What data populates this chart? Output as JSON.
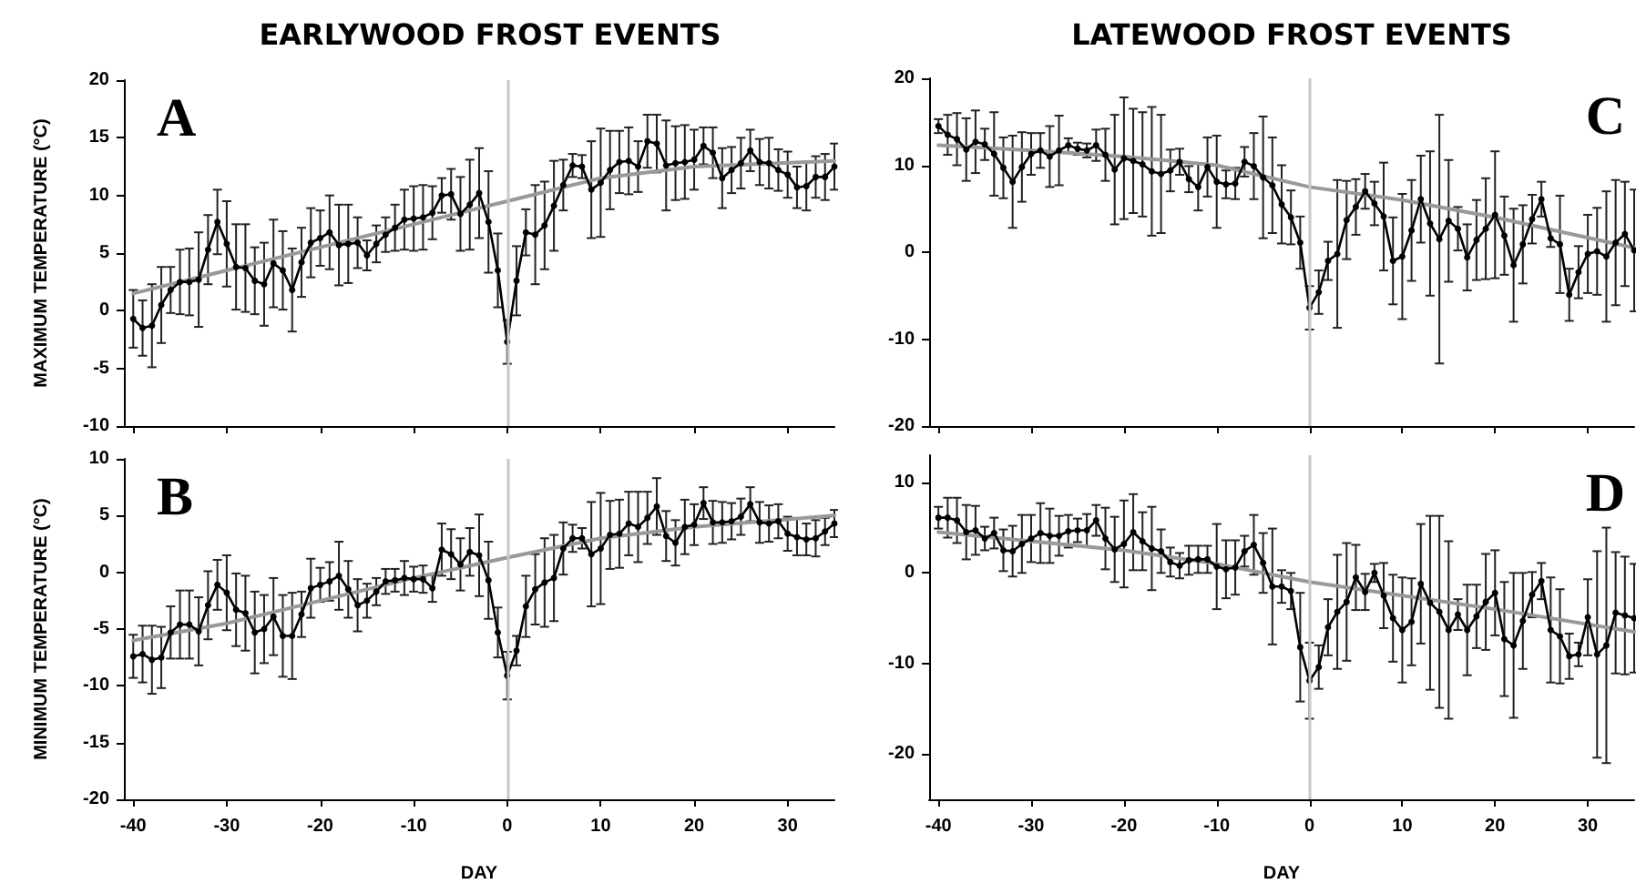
{
  "chart_data": [
    {
      "type": "line",
      "title": "EARLYWOOD FROST EVENTS",
      "ylabel": "MAXIMUM TEMPERATURE (°C)",
      "annotations": [
        "A"
      ],
      "xlim": [
        -41,
        35
      ],
      "xticks": [
        -40,
        -30,
        -20,
        -10,
        0,
        10,
        20,
        30
      ],
      "ylim": [
        -10,
        20
      ],
      "yticks": [
        -10,
        -5,
        0,
        5,
        10,
        15,
        20
      ],
      "tick_labels": "y",
      "marker": "circle",
      "ref_lines": [
        {
          "axis": "x",
          "value": 0,
          "color": "#c8c8c8"
        }
      ],
      "series": [
        {
          "color": "#999999",
          "marker": "none",
          "x": [
            -40,
            -30,
            -20,
            -10,
            0,
            10,
            20,
            35
          ],
          "values": [
            1.5,
            3.5,
            5.5,
            7.5,
            9.5,
            11.5,
            12.5,
            13
          ]
        },
        {
          "color": "#000000",
          "x": [
            -40,
            -39,
            -38,
            -37,
            -36,
            -35,
            -34,
            -33,
            -32,
            -31,
            -30,
            -29,
            -28,
            -27,
            -26,
            -25,
            -24,
            -23,
            -22,
            -21,
            -20,
            -19,
            -18,
            -17,
            -16,
            -15,
            -14,
            -13,
            -12,
            -11,
            -10,
            -9,
            -8,
            -7,
            -6,
            -5,
            -4,
            -3,
            -2,
            -1,
            0,
            1,
            2,
            3,
            4,
            5,
            6,
            7,
            8,
            9,
            10,
            11,
            12,
            13,
            14,
            15,
            16,
            17,
            18,
            19,
            20,
            21,
            22,
            23,
            24,
            25,
            26,
            27,
            28,
            29,
            30,
            31,
            32,
            33,
            34,
            35
          ],
          "values": [
            -0.7,
            -1.5,
            -1.3,
            0.5,
            1.8,
            2.5,
            2.5,
            2.7,
            5.3,
            7.7,
            5.8,
            3.8,
            3.7,
            2.6,
            2.3,
            4.1,
            3.5,
            1.8,
            4.2,
            5.9,
            6.3,
            6.8,
            5.7,
            5.8,
            5.9,
            4.8,
            5.8,
            6.6,
            7.2,
            7.9,
            8,
            8.1,
            8.5,
            10,
            10.1,
            8.4,
            9.2,
            10.2,
            7.7,
            3.5,
            -2.7,
            2.6,
            6.8,
            6.6,
            7.4,
            9.1,
            10.9,
            12.6,
            12.5,
            10.5,
            11.1,
            12.2,
            12.9,
            13,
            12.5,
            14.7,
            14.5,
            12.6,
            12.8,
            12.9,
            13.1,
            14.3,
            13.7,
            11.5,
            12.2,
            12.8,
            13.9,
            12.9,
            12.8,
            12.2,
            11.8,
            10.7,
            10.8,
            11.6,
            11.6,
            12.5
          ],
          "errors": [
            2.5,
            2.4,
            3.6,
            3.3,
            2,
            2.8,
            2.9,
            4.1,
            3,
            2.8,
            3.7,
            3.7,
            3.8,
            2.9,
            3.6,
            3.8,
            3.4,
            3.6,
            3,
            3,
            2.4,
            3.2,
            3.5,
            3.4,
            2.2,
            1.3,
            1.6,
            1.5,
            2,
            2.6,
            2.8,
            2.8,
            2.3,
            1.5,
            2.2,
            3.2,
            3.9,
            3.9,
            4.4,
            3.2,
            1.9,
            3,
            2,
            4.3,
            3.8,
            3.9,
            2.2,
            1,
            1,
            4.2,
            4.7,
            3.4,
            2.7,
            2.9,
            2.2,
            2.3,
            2.5,
            3.9,
            3.2,
            3.2,
            2.6,
            1.6,
            2.2,
            2.6,
            2,
            2.2,
            1.8,
            2,
            2.2,
            1.8,
            2,
            1.8,
            2.1,
            1.8,
            2,
            2
          ]
        }
      ]
    },
    {
      "type": "line",
      "ylabel": "MINIMUM TEMPERATURE (°C)",
      "xlabel": "DAY",
      "annotations": [
        "B"
      ],
      "xlim": [
        -41,
        35
      ],
      "xticks": [
        -40,
        -30,
        -20,
        -10,
        0,
        10,
        20,
        30
      ],
      "ylim": [
        -20,
        10
      ],
      "yticks": [
        -20,
        -15,
        -10,
        -5,
        0,
        5,
        10
      ],
      "marker": "circle",
      "ref_lines": [
        {
          "axis": "x",
          "value": 0,
          "color": "#c8c8c8"
        }
      ],
      "series": [
        {
          "color": "#999999",
          "marker": "none",
          "x": [
            -40,
            -30,
            -20,
            -10,
            0,
            10,
            20,
            35
          ],
          "values": [
            -6,
            -4.5,
            -2.5,
            -0.5,
            1.3,
            3,
            4,
            5
          ]
        },
        {
          "color": "#000000",
          "x": [
            -40,
            -39,
            -38,
            -37,
            -36,
            -35,
            -34,
            -33,
            -32,
            -31,
            -30,
            -29,
            -28,
            -27,
            -26,
            -25,
            -24,
            -23,
            -22,
            -21,
            -20,
            -19,
            -18,
            -17,
            -16,
            -15,
            -14,
            -13,
            -12,
            -11,
            -10,
            -9,
            -8,
            -7,
            -6,
            -5,
            -4,
            -3,
            -2,
            -1,
            0,
            1,
            2,
            3,
            4,
            5,
            6,
            7,
            8,
            9,
            10,
            11,
            12,
            13,
            14,
            15,
            16,
            17,
            18,
            19,
            20,
            21,
            22,
            23,
            24,
            25,
            26,
            27,
            28,
            29,
            30,
            31,
            32,
            33,
            34,
            35
          ],
          "values": [
            -7.4,
            -7.2,
            -7.7,
            -7.5,
            -5.3,
            -4.6,
            -4.6,
            -5.2,
            -2.9,
            -1.1,
            -1.8,
            -3.3,
            -3.6,
            -5.3,
            -5,
            -3.9,
            -5.6,
            -5.6,
            -3.7,
            -1.4,
            -1.1,
            -0.8,
            -0.3,
            -1.5,
            -2.9,
            -2.5,
            -1.7,
            -0.8,
            -0.7,
            -0.5,
            -0.6,
            -0.6,
            -1.4,
            2,
            1.6,
            0.7,
            1.8,
            1.5,
            -0.7,
            -5.3,
            -9.1,
            -6.9,
            -3,
            -1.5,
            -0.9,
            -0.5,
            2.1,
            3,
            3,
            1.6,
            2.1,
            3.3,
            3.4,
            4.3,
            4,
            4.8,
            5.8,
            3.2,
            2.6,
            4,
            4.2,
            6.1,
            4.4,
            4.4,
            4.5,
            4.9,
            6,
            4.4,
            4.3,
            4.5,
            3.4,
            3.1,
            2.9,
            3,
            3.6,
            4.3
          ],
          "errors": [
            1.9,
            2.5,
            3,
            2.7,
            2.3,
            3,
            3,
            3,
            3,
            2.2,
            3.3,
            3.2,
            3.3,
            3.6,
            3,
            3.4,
            3.6,
            3.8,
            2,
            2.6,
            1.5,
            1.7,
            3,
            2.5,
            2.3,
            1.5,
            1.2,
            1.1,
            1,
            1.5,
            1.1,
            1.2,
            1.2,
            2.3,
            2.2,
            2.3,
            2.1,
            3.6,
            3.4,
            2.2,
            2.1,
            1.3,
            2.7,
            3.1,
            3.9,
            3.8,
            2.3,
            1.2,
            0.9,
            4.6,
            4.9,
            3,
            3,
            2.8,
            3.1,
            2.3,
            2.5,
            2.2,
            2,
            2.4,
            1.8,
            1.4,
            1.9,
            1.8,
            1.6,
            1.6,
            1.5,
            1.8,
            1.6,
            1.5,
            1.5,
            1.6,
            1.4,
            1.6,
            1.2,
            1.2
          ]
        }
      ]
    },
    {
      "type": "line",
      "title": "LATEWOOD FROST EVENTS",
      "annotations": [
        "C"
      ],
      "xlim": [
        -41,
        35
      ],
      "xticks": [
        -40,
        -30,
        -20,
        -10,
        0,
        10,
        20,
        30
      ],
      "ylim": [
        -20,
        20
      ],
      "yticks": [
        -20,
        -10,
        0,
        10,
        20
      ],
      "tick_labels": "y",
      "marker": "circle",
      "ref_lines": [
        {
          "axis": "x",
          "value": 0,
          "color": "#c8c8c8"
        }
      ],
      "series": [
        {
          "color": "#999999",
          "marker": "none",
          "x": [
            -40,
            -30,
            -20,
            -10,
            0,
            10,
            20,
            35
          ],
          "values": [
            12.3,
            11.7,
            11,
            10,
            7.5,
            6,
            4,
            0.5
          ]
        },
        {
          "color": "#000000",
          "x": [
            -40,
            -39,
            -38,
            -37,
            -36,
            -35,
            -34,
            -33,
            -32,
            -31,
            -30,
            -29,
            -28,
            -27,
            -26,
            -25,
            -24,
            -23,
            -22,
            -21,
            -20,
            -19,
            -18,
            -17,
            -16,
            -15,
            -14,
            -13,
            -12,
            -11,
            -10,
            -9,
            -8,
            -7,
            -6,
            -5,
            -4,
            -3,
            -2,
            -1,
            0,
            1,
            2,
            3,
            4,
            5,
            6,
            7,
            8,
            9,
            10,
            11,
            12,
            13,
            14,
            15,
            16,
            17,
            18,
            19,
            20,
            21,
            22,
            23,
            24,
            25,
            26,
            27,
            28,
            29,
            30,
            31,
            32,
            33,
            34,
            35
          ],
          "values": [
            14.5,
            13.5,
            13,
            11.8,
            12.7,
            12.4,
            11.3,
            9.7,
            8.1,
            9.8,
            11.3,
            11.7,
            11,
            11.7,
            12.3,
            11.9,
            11.7,
            12.3,
            11.2,
            9.5,
            10.8,
            10.5,
            10.1,
            9.3,
            9,
            9.4,
            10.4,
            8.4,
            7.5,
            9.8,
            8.1,
            7.8,
            7.9,
            10.4,
            9.9,
            8.6,
            7.7,
            5.5,
            4,
            1.1,
            -6.4,
            -4.6,
            -1,
            -0.2,
            3.7,
            5.2,
            7,
            5.6,
            4.1,
            -1,
            -0.5,
            2.5,
            6.1,
            3.3,
            1.5,
            3.6,
            2.7,
            -0.6,
            1.4,
            2.7,
            4.3,
            1.9,
            -1.5,
            0.9,
            3.8,
            6.1,
            1.6,
            0.9,
            -4.9,
            -2.3,
            -0.2,
            0.1,
            -0.5,
            1.1,
            2.1,
            0.2
          ],
          "errors": [
            0.8,
            2.3,
            3,
            3.6,
            3.6,
            1.8,
            4.8,
            3.5,
            5.3,
            4,
            2.4,
            2,
            3.5,
            4,
            0.8,
            0.7,
            0.8,
            1.8,
            3,
            6.3,
            7,
            6,
            6,
            7.4,
            6.8,
            2.4,
            1.5,
            1.5,
            2.7,
            3.4,
            5.3,
            1.6,
            1.8,
            1.7,
            3.8,
            7,
            5.5,
            4.5,
            3.1,
            3,
            2.5,
            2.5,
            2.2,
            8.5,
            4.5,
            3.2,
            2,
            2.5,
            6.2,
            5,
            7.2,
            5.8,
            5,
            8.3,
            14.3,
            7,
            2.5,
            3.8,
            4.6,
            5.8,
            7.3,
            4.5,
            6.5,
            4.5,
            2.8,
            2,
            1,
            5.6,
            3,
            3,
            4.5,
            5,
            7.5,
            7.2,
            6,
            7
          ]
        }
      ]
    },
    {
      "type": "line",
      "xlabel": "DAY",
      "annotations": [
        "D"
      ],
      "xlim": [
        -41,
        35
      ],
      "xticks": [
        -40,
        -30,
        -20,
        -10,
        0,
        10,
        20,
        30
      ],
      "ylim": [
        -25,
        13
      ],
      "yticks": [
        -20,
        -10,
        0,
        10
      ],
      "marker": "circle",
      "ref_lines": [
        {
          "axis": "x",
          "value": 0,
          "color": "#c8c8c8"
        }
      ],
      "series": [
        {
          "color": "#999999",
          "marker": "none",
          "x": [
            -40,
            -30,
            -20,
            -10,
            0,
            10,
            20,
            35
          ],
          "values": [
            4.5,
            3.5,
            2.5,
            1,
            -1,
            -2.5,
            -4,
            -6.5
          ]
        },
        {
          "color": "#000000",
          "x": [
            -40,
            -39,
            -38,
            -37,
            -36,
            -35,
            -34,
            -33,
            -32,
            -31,
            -30,
            -29,
            -28,
            -27,
            -26,
            -25,
            -24,
            -23,
            -22,
            -21,
            -20,
            -19,
            -18,
            -17,
            -16,
            -15,
            -14,
            -13,
            -12,
            -11,
            -10,
            -9,
            -8,
            -7,
            -6,
            -5,
            -4,
            -3,
            -2,
            -1,
            0,
            1,
            2,
            3,
            4,
            5,
            6,
            7,
            8,
            9,
            10,
            11,
            12,
            13,
            14,
            15,
            16,
            17,
            18,
            19,
            20,
            21,
            22,
            23,
            24,
            25,
            26,
            27,
            28,
            29,
            30,
            31,
            32,
            33,
            34,
            35
          ],
          "values": [
            6.1,
            6.1,
            5.8,
            4.5,
            4.7,
            3.8,
            4.4,
            2.5,
            2.4,
            3.2,
            3.8,
            4.4,
            4.1,
            4.1,
            4.6,
            4.7,
            4.7,
            5.8,
            3.8,
            2.6,
            3.2,
            4.5,
            3.5,
            2.7,
            2.4,
            1.2,
            0.8,
            1.4,
            1.5,
            1.5,
            0.7,
            0.4,
            0.6,
            2.4,
            3.1,
            1.1,
            -1.5,
            -1.5,
            -2,
            -8.2,
            -11.9,
            -10.4,
            -6,
            -4.3,
            -3.2,
            -0.5,
            -2.1,
            0,
            -2.5,
            -5,
            -6.3,
            -5.4,
            -1.2,
            -3.3,
            -4.3,
            -6.3,
            -4.6,
            -6.3,
            -4.8,
            -3.2,
            -2.2,
            -7.3,
            -8,
            -5.3,
            -2.4,
            -0.9,
            -6.3,
            -7,
            -9.2,
            -9,
            -4.9,
            -9,
            -8,
            -4.4,
            -4.7,
            -5
          ],
          "errors": [
            1.2,
            2.2,
            2.5,
            3,
            2.7,
            1.3,
            1.7,
            2.3,
            2.8,
            3.2,
            2.6,
            3.3,
            3,
            2.2,
            1.8,
            1.3,
            1.8,
            1.7,
            3.4,
            3.6,
            4.8,
            4.2,
            3.2,
            4.6,
            2.4,
            1.6,
            1.4,
            1.6,
            1.5,
            1.5,
            4.7,
            3.2,
            3,
            1.7,
            3.3,
            3.3,
            6.4,
            1.8,
            2,
            6,
            4.2,
            2.4,
            3.1,
            6.3,
            6.5,
            3.6,
            2,
            1,
            3.6,
            4.8,
            5.8,
            4.8,
            6.6,
            9.6,
            10.6,
            9.8,
            1.7,
            5,
            3.5,
            5.3,
            4.7,
            6.3,
            8,
            5.3,
            2.5,
            2,
            5.8,
            5.2,
            2.5,
            1.3,
            4.2,
            11.4,
            13,
            6.7,
            6.5,
            6
          ]
        }
      ]
    }
  ]
}
